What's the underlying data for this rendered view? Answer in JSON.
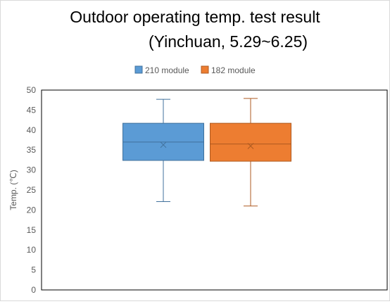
{
  "chart_data": {
    "type": "box",
    "title": [
      "Outdoor operating temp. test result",
      "(Yinchuan, 5.29~6.25)"
    ],
    "ylabel": "Temp. (℃)",
    "ylim": [
      0,
      50
    ],
    "yticks": [
      0,
      5,
      10,
      15,
      20,
      25,
      30,
      35,
      40,
      45,
      50
    ],
    "legend_position": "top",
    "grid": false,
    "series": [
      {
        "name": "210 module",
        "color": "#5b9bd5",
        "edge": "#41719c",
        "min": 22.1,
        "q1": 32.4,
        "median": 37.0,
        "q3": 41.7,
        "max": 47.7,
        "mean": 36.3
      },
      {
        "name": "182 module",
        "color": "#ed7d31",
        "edge": "#ae5a21",
        "min": 21.0,
        "q1": 32.2,
        "median": 36.5,
        "q3": 41.7,
        "max": 47.9,
        "mean": 36.0
      }
    ]
  }
}
